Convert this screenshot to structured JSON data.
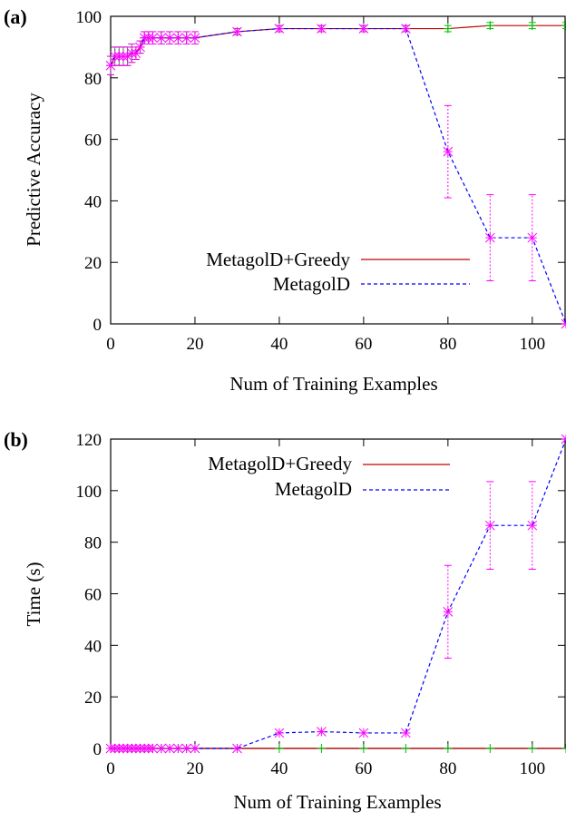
{
  "chart_data": [
    {
      "type": "line",
      "panel_label": "(a)",
      "xlabel": "Num of Training Examples",
      "ylabel": "Predictive Accuracy",
      "xlim": [
        0,
        108
      ],
      "ylim": [
        0,
        100
      ],
      "xticks": [
        0,
        20,
        40,
        60,
        80,
        100
      ],
      "yticks": [
        0,
        20,
        40,
        60,
        80,
        100
      ],
      "grid": false,
      "legend_position": "bottom-right",
      "series": [
        {
          "name": "MetagolD+Greedy",
          "color": "#c00000",
          "dash": "solid",
          "marker": "plus",
          "marker_color": "#00c000",
          "errorbar_color": "#00c000",
          "x": [
            0,
            1,
            2,
            3,
            4,
            5,
            6,
            7,
            8,
            9,
            10,
            12,
            14,
            16,
            18,
            20,
            30,
            40,
            50,
            60,
            70,
            80,
            90,
            100,
            108
          ],
          "y": [
            84,
            87,
            87,
            87,
            87,
            88,
            88,
            90,
            93,
            93,
            93,
            93,
            93,
            93,
            93,
            93,
            95,
            96,
            96,
            96,
            96,
            96,
            97,
            97,
            97
          ],
          "err": [
            3,
            3,
            3,
            3,
            3,
            3,
            2,
            2,
            2,
            2,
            2,
            2,
            2,
            2,
            2,
            2,
            1,
            1,
            1,
            1,
            1,
            1,
            1,
            1,
            1
          ]
        },
        {
          "name": "MetagolD",
          "color": "#0000ff",
          "dash": "dashed",
          "marker": "star",
          "marker_color": "#ff00ff",
          "errorbar_color": "#ff00ff",
          "x": [
            0,
            1,
            2,
            3,
            4,
            5,
            6,
            7,
            8,
            9,
            10,
            12,
            14,
            16,
            18,
            20,
            30,
            40,
            50,
            60,
            70,
            80,
            90,
            100,
            108
          ],
          "y": [
            84,
            87,
            87,
            87,
            87,
            88,
            88,
            90,
            93,
            93,
            93,
            93,
            93,
            93,
            93,
            93,
            95,
            96,
            96,
            96,
            96,
            56,
            28,
            28,
            0
          ],
          "err": [
            3,
            3,
            3,
            3,
            3,
            3,
            2,
            2,
            2,
            2,
            2,
            2,
            2,
            2,
            2,
            2,
            1,
            1,
            1,
            1,
            1,
            15,
            14,
            14,
            0
          ]
        }
      ]
    },
    {
      "type": "line",
      "panel_label": "(b)",
      "xlabel": "Num of Training Examples",
      "ylabel": "Time (s)",
      "xlim": [
        0,
        108
      ],
      "ylim": [
        0,
        120
      ],
      "xticks": [
        0,
        20,
        40,
        60,
        80,
        100
      ],
      "yticks": [
        0,
        20,
        40,
        60,
        80,
        100,
        120
      ],
      "grid": false,
      "legend_position": "top-left",
      "series": [
        {
          "name": "MetagolD+Greedy",
          "color": "#c00000",
          "dash": "solid",
          "marker": "plus",
          "marker_color": "#00c000",
          "errorbar_color": "#00c000",
          "x": [
            0,
            1,
            2,
            3,
            4,
            5,
            6,
            7,
            8,
            9,
            10,
            12,
            14,
            16,
            18,
            20,
            30,
            40,
            50,
            60,
            70,
            80,
            90,
            100,
            108
          ],
          "y": [
            0,
            0,
            0,
            0,
            0,
            0,
            0,
            0,
            0,
            0,
            0,
            0,
            0,
            0,
            0,
            0,
            0,
            0,
            0,
            0,
            0,
            0,
            0,
            0,
            0
          ],
          "err": [
            0,
            0,
            0,
            0,
            0,
            0,
            0,
            0,
            0,
            0,
            0,
            0,
            0,
            0,
            0,
            0,
            0,
            0,
            0,
            0,
            0,
            0,
            0,
            0,
            0
          ]
        },
        {
          "name": "MetagolD",
          "color": "#0000ff",
          "dash": "dashed",
          "marker": "star",
          "marker_color": "#ff00ff",
          "errorbar_color": "#ff00ff",
          "x": [
            0,
            1,
            2,
            3,
            4,
            5,
            6,
            7,
            8,
            9,
            10,
            12,
            14,
            16,
            18,
            20,
            30,
            40,
            50,
            60,
            70,
            80,
            90,
            100,
            108
          ],
          "y": [
            0,
            0,
            0,
            0,
            0,
            0,
            0,
            0,
            0,
            0,
            0,
            0,
            0,
            0,
            0,
            0,
            0,
            6,
            6.5,
            6,
            6,
            53,
            86.5,
            86.5,
            120
          ],
          "err": [
            0,
            0,
            0,
            0,
            0,
            0,
            0,
            0,
            0,
            0,
            0,
            0,
            0,
            0,
            0,
            0,
            0,
            0,
            0,
            0,
            0,
            18,
            17,
            17,
            0
          ]
        }
      ]
    }
  ]
}
